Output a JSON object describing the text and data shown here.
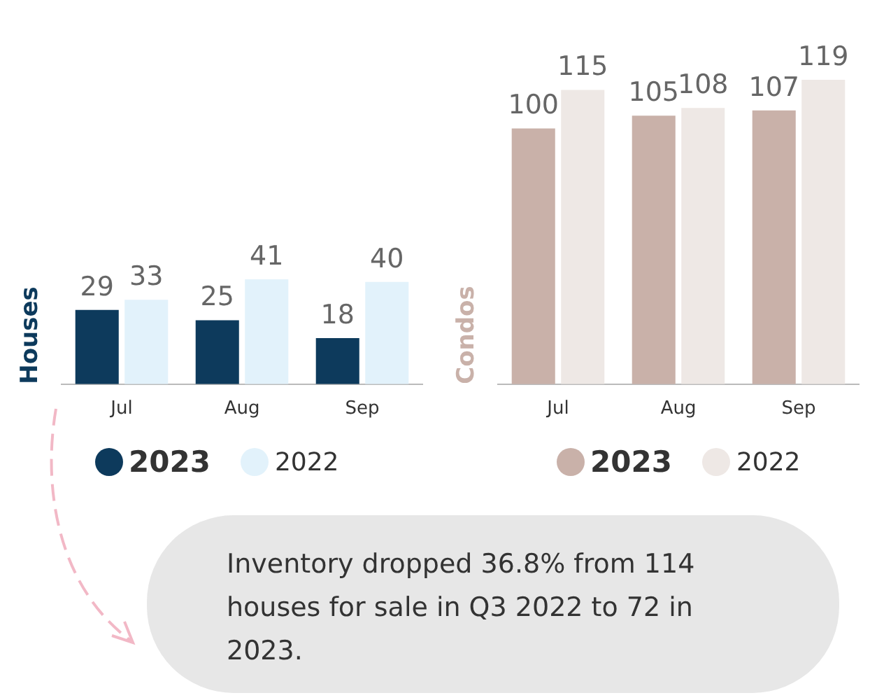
{
  "chart_data": [
    {
      "type": "bar",
      "ylabel": "Houses",
      "categories": [
        "Jul",
        "Aug",
        "Sep"
      ],
      "legend": "bottom",
      "data_labels": true,
      "series": [
        {
          "name": "2023",
          "color": "#0d3a5c",
          "values": [
            29,
            25,
            18
          ]
        },
        {
          "name": "2022",
          "color": "#e2f2fb",
          "values": [
            33,
            41,
            40
          ]
        }
      ],
      "annotations": [
        "Inventory dropped 36.8% from 114 houses for sale in Q3 2022 to 72 in 2023."
      ]
    },
    {
      "type": "bar",
      "ylabel": "Condos",
      "categories": [
        "Jul",
        "Aug",
        "Sep"
      ],
      "legend": "bottom",
      "data_labels": true,
      "series": [
        {
          "name": "2023",
          "color": "#c9b1a9",
          "values": [
            100,
            105,
            107
          ]
        },
        {
          "name": "2022",
          "color": "#eee8e5",
          "values": [
            115,
            108,
            119
          ]
        }
      ]
    }
  ]
}
